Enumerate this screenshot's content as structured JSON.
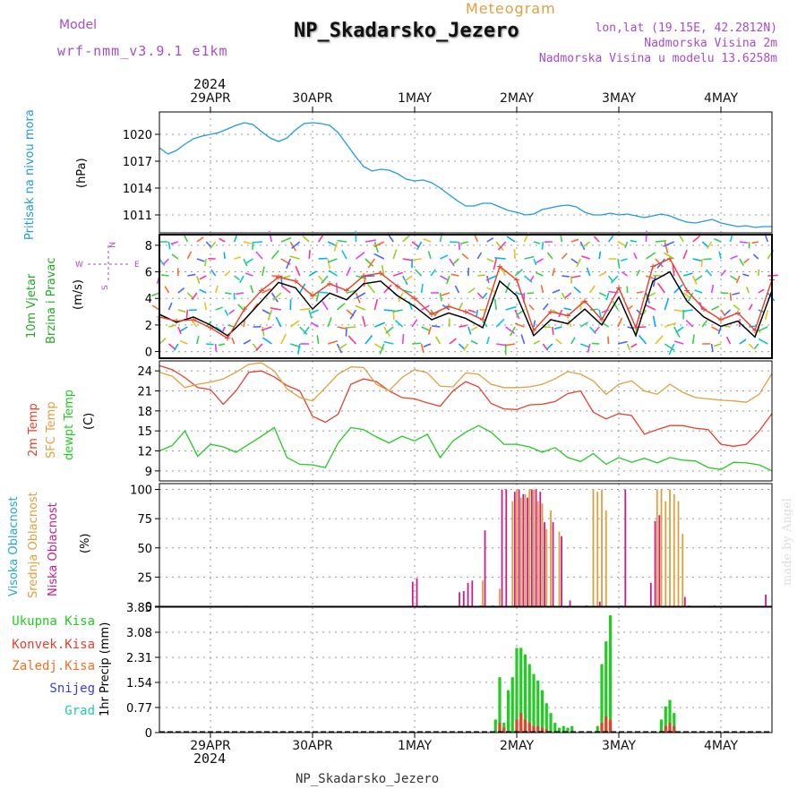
{
  "header": {
    "model_label": "Model",
    "model_name": "wrf-nmm_v3.9.1 e1km",
    "subtitle": "Meteogram",
    "title": "NP_Skadarsko_Jezero",
    "lonlat": "lon,lat (19.15E, 42.2812N)",
    "altitude": "Nadmorska Visina 2m",
    "model_altitude": "Nadmorska Visina u modelu 13.6258m",
    "year_top": "2024",
    "year_bottom": "2024",
    "footer": "NP_Skadarsko_Jezero",
    "watermark": "made by Angel"
  },
  "colors": {
    "pressure": "#1e9be0",
    "wind_speed": "#000000",
    "wind_gust": "#e8442e",
    "temp2m": "#e8402e",
    "sfc_temp": "#e0a040",
    "dewpt": "#22cc22",
    "cloud_high": "#22aacc",
    "cloud_mid": "#e0a040",
    "cloud_low": "#c81d8c",
    "precip_total": "#22cc22",
    "precip_conv": "#e8402e",
    "precip_frozen": "#f07020",
    "snow": "#3a3ae0",
    "hail": "#22c8b0",
    "model_label": "#a64ccc"
  },
  "legend": {
    "wind_compass": [
      "N",
      "E",
      "S",
      "W"
    ]
  },
  "chart_data": [
    {
      "type": "line",
      "panel": "pressure",
      "ylabel_lines": [
        "Pritisak na nivou mora"
      ],
      "unit": "(hPa)",
      "ylim": [
        1009,
        1022.5
      ],
      "yticks": [
        1011,
        1014,
        1017,
        1020
      ],
      "xlim": [
        0,
        144
      ],
      "xtick_hours": [
        12,
        36,
        60,
        84,
        108,
        132
      ],
      "xtick_labels": [
        "29APR",
        "30APR",
        "1MAY",
        "2MAY",
        "3MAY",
        "4MAY"
      ],
      "grid": true,
      "series": [
        {
          "key": "pressure",
          "x": [
            0,
            2,
            4,
            6,
            8,
            10,
            12,
            14,
            16,
            18,
            20,
            22,
            24,
            26,
            28,
            30,
            32,
            34,
            36,
            38,
            40,
            42,
            44,
            46,
            48,
            50,
            52,
            54,
            56,
            58,
            60,
            62,
            64,
            66,
            68,
            70,
            72,
            74,
            76,
            78,
            80,
            82,
            84,
            86,
            88,
            90,
            92,
            94,
            96,
            98,
            100,
            102,
            104,
            106,
            108,
            110,
            112,
            114,
            116,
            118,
            120,
            122,
            124,
            126,
            128,
            130,
            132,
            134,
            136,
            138,
            140,
            142,
            144
          ],
          "values": [
            1018.5,
            1017.8,
            1018.2,
            1018.9,
            1019.5,
            1019.8,
            1020.0,
            1020.2,
            1020.6,
            1021.0,
            1021.3,
            1021.1,
            1020.3,
            1019.6,
            1019.2,
            1019.6,
            1020.5,
            1021.2,
            1021.3,
            1021.2,
            1021.0,
            1020.2,
            1018.9,
            1017.6,
            1016.4,
            1015.9,
            1016.1,
            1016.0,
            1015.6,
            1015.0,
            1014.8,
            1014.9,
            1014.6,
            1014.0,
            1013.3,
            1012.6,
            1012.0,
            1012.0,
            1012.3,
            1012.3,
            1011.9,
            1011.5,
            1011.3,
            1011.0,
            1011.1,
            1011.6,
            1011.8,
            1012.0,
            1012.1,
            1011.9,
            1011.3,
            1011.0,
            1011.0,
            1011.2,
            1011.0,
            1011.1,
            1010.9,
            1010.7,
            1010.9,
            1011.1,
            1010.9,
            1010.5,
            1010.2,
            1010.1,
            1010.3,
            1010.5,
            1010.1,
            1009.9,
            1009.7,
            1009.8,
            1009.6,
            1009.7,
            1009.7
          ]
        }
      ]
    },
    {
      "type": "line",
      "panel": "wind",
      "ylabel_lines": [
        "10m Vjetar",
        "Brzina i Pravac"
      ],
      "unit": "(m/s)",
      "ylim": [
        -0.5,
        8.8
      ],
      "yticks": [
        0,
        2,
        4,
        6,
        8
      ],
      "xlim": [
        0,
        144
      ],
      "grid": true,
      "series": [
        {
          "key": "wind_speed",
          "x": [
            0,
            4,
            8,
            12,
            16,
            20,
            24,
            28,
            32,
            36,
            40,
            44,
            48,
            52,
            56,
            60,
            64,
            68,
            72,
            76,
            80,
            84,
            88,
            92,
            96,
            100,
            104,
            108,
            112,
            116,
            120,
            124,
            128,
            132,
            136,
            140,
            144
          ],
          "values": [
            2.8,
            2.2,
            2.6,
            2.0,
            1.2,
            2.4,
            3.8,
            5.2,
            4.8,
            3.2,
            4.4,
            3.9,
            5.1,
            5.3,
            4.2,
            3.4,
            2.4,
            2.9,
            2.5,
            1.8,
            5.3,
            4.2,
            1.2,
            2.4,
            2.1,
            3.2,
            2.0,
            4.1,
            1.2,
            5.3,
            6.0,
            3.8,
            2.6,
            1.9,
            2.3,
            1.1,
            4.6
          ]
        },
        {
          "key": "wind_gust",
          "x": [
            0,
            4,
            8,
            12,
            16,
            20,
            24,
            28,
            32,
            36,
            40,
            44,
            48,
            52,
            56,
            60,
            64,
            68,
            72,
            76,
            80,
            84,
            88,
            92,
            96,
            100,
            104,
            108,
            112,
            116,
            120,
            124,
            128,
            132,
            136,
            140,
            144
          ],
          "values": [
            2.6,
            2.3,
            2.4,
            1.8,
            1.0,
            3.2,
            4.6,
            5.6,
            5.3,
            4.2,
            5.1,
            4.6,
            5.7,
            5.9,
            4.9,
            4.0,
            2.8,
            3.4,
            3.0,
            2.4,
            6.4,
            5.4,
            1.6,
            3.0,
            2.7,
            3.8,
            2.4,
            4.8,
            1.8,
            6.4,
            7.0,
            4.6,
            3.2,
            2.4,
            2.9,
            1.6,
            5.4
          ]
        }
      ]
    },
    {
      "type": "line",
      "panel": "temperature",
      "ylabel_lines": [
        "2m Temp",
        "SFC Temp",
        "dewpt Temp"
      ],
      "unit": "(C)",
      "ylim": [
        7.5,
        25.5
      ],
      "yticks": [
        9,
        12,
        15,
        18,
        21,
        24
      ],
      "xlim": [
        0,
        144
      ],
      "grid": true,
      "series": [
        {
          "key": "temp2m",
          "x": [
            0,
            3,
            6,
            9,
            12,
            15,
            18,
            21,
            24,
            27,
            30,
            33,
            36,
            39,
            42,
            45,
            48,
            51,
            54,
            57,
            60,
            63,
            66,
            69,
            72,
            75,
            78,
            81,
            84,
            87,
            90,
            93,
            96,
            99,
            102,
            105,
            108,
            111,
            114,
            117,
            120,
            123,
            126,
            129,
            132,
            135,
            138,
            141,
            144
          ],
          "values": [
            24.8,
            24.2,
            23.0,
            21.5,
            21.2,
            19.0,
            21.0,
            23.8,
            24.0,
            23.1,
            21.8,
            21.0,
            17.2,
            16.3,
            17.5,
            22.0,
            22.8,
            22.4,
            21.0,
            20.0,
            19.8,
            19.2,
            18.7,
            21.0,
            22.4,
            21.6,
            19.1,
            18.3,
            18.2,
            18.9,
            19.0,
            19.4,
            20.6,
            21.0,
            17.8,
            16.8,
            17.6,
            17.3,
            14.5,
            15.2,
            15.8,
            15.8,
            15.4,
            15.2,
            13.0,
            12.7,
            13.0,
            15.0,
            17.6
          ]
        },
        {
          "key": "sfc_temp",
          "x": [
            0,
            3,
            6,
            9,
            12,
            15,
            18,
            21,
            24,
            27,
            30,
            33,
            36,
            39,
            42,
            45,
            48,
            51,
            54,
            57,
            60,
            63,
            66,
            69,
            72,
            75,
            78,
            81,
            84,
            87,
            90,
            93,
            96,
            99,
            102,
            105,
            108,
            111,
            114,
            117,
            120,
            123,
            126,
            129,
            132,
            135,
            138,
            141,
            144
          ],
          "values": [
            23.8,
            23.2,
            21.5,
            22.0,
            22.3,
            22.8,
            23.8,
            25.0,
            25.2,
            24.0,
            21.3,
            20.0,
            19.5,
            21.5,
            23.5,
            24.6,
            24.5,
            22.0,
            21.0,
            23.0,
            24.2,
            23.7,
            21.7,
            21.6,
            23.7,
            23.5,
            22.0,
            21.5,
            21.5,
            21.6,
            22.0,
            22.8,
            23.9,
            23.5,
            22.5,
            20.5,
            22.0,
            22.5,
            21.0,
            20.5,
            22.0,
            20.8,
            20.0,
            19.8,
            19.6,
            19.5,
            19.3,
            20.5,
            23.6
          ]
        },
        {
          "key": "dewpt",
          "x": [
            0,
            3,
            6,
            9,
            12,
            15,
            18,
            21,
            24,
            27,
            30,
            33,
            36,
            39,
            42,
            45,
            48,
            51,
            54,
            57,
            60,
            63,
            66,
            69,
            72,
            75,
            78,
            81,
            84,
            87,
            90,
            93,
            96,
            99,
            102,
            105,
            108,
            111,
            114,
            117,
            120,
            123,
            126,
            129,
            132,
            135,
            138,
            141,
            144
          ],
          "values": [
            12.0,
            12.8,
            15.0,
            11.2,
            13.0,
            12.6,
            11.8,
            13.0,
            14.2,
            15.5,
            11.0,
            10.0,
            9.9,
            9.5,
            13.2,
            15.5,
            15.2,
            14.1,
            13.2,
            14.2,
            13.5,
            14.5,
            11.0,
            13.5,
            14.8,
            15.8,
            14.8,
            13.0,
            13.0,
            12.6,
            11.8,
            12.5,
            11.0,
            10.4,
            11.6,
            10.0,
            11.0,
            10.3,
            10.9,
            10.2,
            11.0,
            10.6,
            10.5,
            9.5,
            9.2,
            10.3,
            10.2,
            9.9,
            9.0
          ]
        }
      ]
    },
    {
      "type": "bar",
      "panel": "cloud",
      "ylabel_lines": [
        "Visoka Oblacnost",
        "Srednja Oblacnost",
        "Niska Oblacnost"
      ],
      "unit": "(%)",
      "ylim": [
        0,
        105
      ],
      "yticks": [
        0,
        25,
        50,
        75,
        100
      ],
      "xlim": [
        0,
        144
      ],
      "grid": true,
      "series": [
        {
          "key": "cloud_low",
          "x": [
            60,
            61,
            71,
            72,
            73,
            74,
            77,
            81,
            82,
            84,
            85,
            86,
            87,
            88,
            89,
            90,
            91,
            93,
            95,
            97,
            104,
            110,
            116,
            117,
            118,
            124,
            143
          ],
          "values": [
            21,
            24,
            12,
            13,
            20,
            22,
            65,
            100,
            100,
            98,
            100,
            96,
            93,
            100,
            100,
            98,
            72,
            72,
            60,
            5,
            4,
            100,
            20,
            73,
            78,
            8,
            10
          ]
        },
        {
          "key": "cloud_mid",
          "x": [
            76,
            80,
            83,
            84,
            85,
            86,
            87,
            88,
            89,
            90,
            91,
            92,
            94,
            102,
            103,
            104,
            105,
            117,
            118,
            119,
            120,
            121,
            122,
            123
          ],
          "values": [
            22,
            15,
            90,
            100,
            93,
            96,
            100,
            100,
            90,
            88,
            66,
            82,
            64,
            100,
            98,
            100,
            82,
            100,
            100,
            90,
            100,
            96,
            90,
            62
          ]
        },
        {
          "key": "cloud_high",
          "x": [
            0,
            20,
            40,
            58,
            62,
            71,
            75,
            78,
            88,
            100,
            108,
            116,
            124,
            130,
            138
          ],
          "values": [
            0.5,
            0.5,
            0.5,
            0.5,
            0.8,
            0.8,
            0.8,
            0.8,
            0.8,
            0.8,
            0.8,
            0.8,
            0.8,
            0.8,
            0.5
          ]
        }
      ]
    },
    {
      "type": "bar",
      "panel": "precip",
      "ylabel_lines": [
        "1hr Precip (mm)"
      ],
      "legend_labels": [
        "Ukupna Kisa",
        "Konvek.Kisa",
        "Zaledj.Kisa",
        "Snijeg",
        "Grad"
      ],
      "unit": "",
      "ylim": [
        0,
        3.85
      ],
      "yticks": [
        0,
        0.77,
        1.54,
        2.31,
        3.08,
        3.85
      ],
      "xlim": [
        0,
        144
      ],
      "grid": true,
      "series": [
        {
          "key": "precip_total",
          "x": [
            79,
            80,
            81,
            82,
            83,
            84,
            85,
            86,
            87,
            88,
            89,
            90,
            91,
            92,
            93,
            94,
            95,
            96,
            97,
            103,
            104,
            105,
            106,
            118,
            119,
            120,
            121
          ],
          "values": [
            0.4,
            1.7,
            0.3,
            1.3,
            1.7,
            2.6,
            2.6,
            2.4,
            2.1,
            1.8,
            1.6,
            1.3,
            0.9,
            0.6,
            0.3,
            0.15,
            0.2,
            0.15,
            0.2,
            0.2,
            2.1,
            2.8,
            3.6,
            0.4,
            0.8,
            1.0,
            0.6
          ]
        },
        {
          "key": "precip_conv",
          "x": [
            80,
            81,
            84,
            85,
            86,
            87,
            88,
            89,
            90,
            91,
            104,
            105,
            106,
            119,
            120,
            121
          ],
          "values": [
            0.3,
            0.15,
            0.4,
            0.6,
            0.4,
            0.3,
            0.2,
            0.2,
            0.15,
            0.1,
            0.3,
            0.5,
            0.4,
            0.2,
            0.3,
            0.2
          ]
        },
        {
          "key": "hail",
          "x": [],
          "values": []
        }
      ]
    }
  ]
}
